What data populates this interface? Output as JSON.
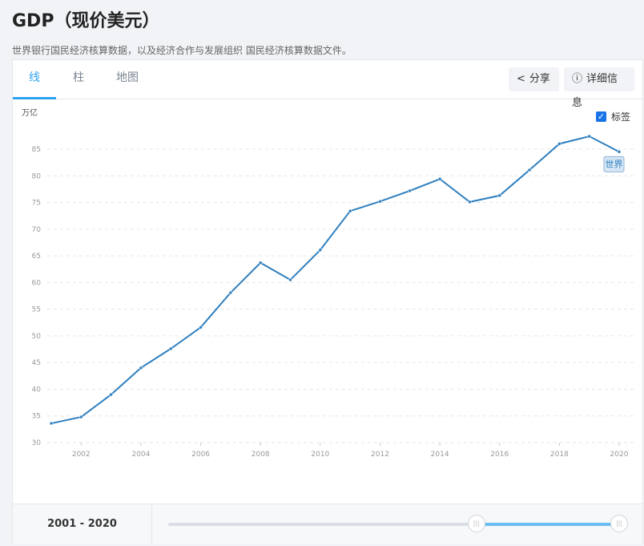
{
  "header": {
    "title": "GDP（现价美元）",
    "subtitle": "世界银行国民经济核算数据，以及经济合作与发展组织 国民经济核算数据文件。"
  },
  "tabs": [
    {
      "label": "线",
      "active": true
    },
    {
      "label": "柱",
      "active": false
    },
    {
      "label": "地图",
      "active": false
    }
  ],
  "buttons": {
    "share": "分享",
    "details": "详细信息",
    "share_icon": "share-icon",
    "details_icon": "info-icon"
  },
  "label_toggle": {
    "label": "标签",
    "checked": true
  },
  "accent_color": "#2ea3f2",
  "chart_data": {
    "type": "line",
    "ylabel": "万亿",
    "ylim": [
      30,
      85
    ],
    "yticks": [
      30,
      35,
      40,
      45,
      50,
      55,
      60,
      65,
      70,
      75,
      80,
      85
    ],
    "xlim": [
      2001,
      2020
    ],
    "xticks": [
      2002,
      2004,
      2006,
      2008,
      2010,
      2012,
      2014,
      2016,
      2018,
      2020
    ],
    "grid": true,
    "line_color": "#2e7fbf",
    "series": [
      {
        "name": "世界",
        "x": [
          2001,
          2002,
          2003,
          2004,
          2005,
          2006,
          2007,
          2008,
          2009,
          2010,
          2011,
          2012,
          2013,
          2014,
          2015,
          2016,
          2017,
          2018,
          2019,
          2020
        ],
        "values": [
          33.6,
          34.8,
          39.0,
          44.0,
          47.6,
          51.6,
          58.1,
          63.7,
          60.5,
          66.1,
          73.4,
          75.2,
          77.2,
          79.4,
          75.1,
          76.3,
          81.1,
          86.0,
          87.4,
          84.5
        ]
      }
    ]
  },
  "footer": {
    "range_label": "2001 - 2020",
    "slider_min": 1960,
    "slider_max": 2020,
    "selected_start": 2001,
    "selected_end": 2020
  }
}
